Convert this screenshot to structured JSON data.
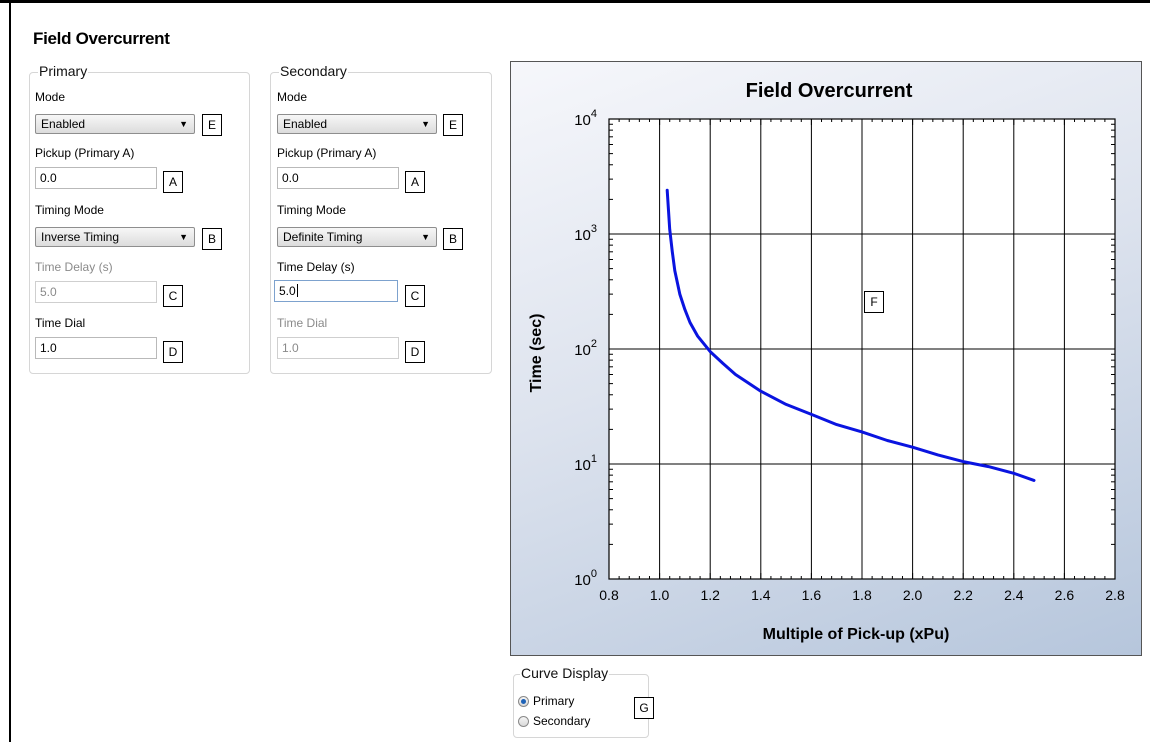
{
  "page": {
    "title": "Field Overcurrent"
  },
  "primary": {
    "legend": "Primary",
    "mode_label": "Mode",
    "mode_value": "Enabled",
    "pickup_label": "Pickup (Primary A)",
    "pickup_value": "0.0",
    "timing_mode_label": "Timing Mode",
    "timing_mode_value": "Inverse Timing",
    "time_delay_label": "Time Delay (s)",
    "time_delay_value": "5.0",
    "time_dial_label": "Time Dial",
    "time_dial_value": "1.0"
  },
  "secondary": {
    "legend": "Secondary",
    "mode_label": "Mode",
    "mode_value": "Enabled",
    "pickup_label": "Pickup (Primary A)",
    "pickup_value": "0.0",
    "timing_mode_label": "Timing Mode",
    "timing_mode_value": "Definite Timing",
    "time_delay_label": "Time Delay (s)",
    "time_delay_value": "5.0",
    "time_dial_label": "Time Dial",
    "time_dial_value": "1.0"
  },
  "tags": {
    "A": "A",
    "B": "B",
    "C": "C",
    "D": "D",
    "E": "E",
    "F": "F",
    "G": "G"
  },
  "curve_display": {
    "legend": "Curve Display",
    "options": [
      "Primary",
      "Secondary"
    ],
    "selected": "Primary"
  },
  "icons": {
    "dropdown": "chevron-down-icon",
    "radio": "radio-icon"
  },
  "colors": {
    "curve": "#0a14e0",
    "panel_gradient": [
      "#f6f7fb",
      "#b6c6dc"
    ]
  },
  "chart_data": {
    "type": "line",
    "title": "Field Overcurrent",
    "xlabel": "Multiple of Pick-up (xPu)",
    "ylabel": "Time (sec)",
    "xlim": [
      0.8,
      2.8
    ],
    "ylim": [
      1,
      10000
    ],
    "yscale": "log",
    "grid": true,
    "x_ticks": [
      "0.8",
      "1.0",
      "1.2",
      "1.4",
      "1.6",
      "1.8",
      "2.0",
      "2.2",
      "2.4",
      "2.6",
      "2.8"
    ],
    "y_ticks": [
      {
        "base": "10",
        "exp": "0",
        "value": 1
      },
      {
        "base": "10",
        "exp": "1",
        "value": 10
      },
      {
        "base": "10",
        "exp": "2",
        "value": 100
      },
      {
        "base": "10",
        "exp": "3",
        "value": 1000
      },
      {
        "base": "10",
        "exp": "4",
        "value": 10000
      }
    ],
    "series": [
      {
        "x": [
          1.03,
          1.035,
          1.04,
          1.05,
          1.06,
          1.08,
          1.1,
          1.12,
          1.15,
          1.2,
          1.25,
          1.3,
          1.4,
          1.5,
          1.6,
          1.7,
          1.8,
          1.9,
          2.0,
          2.1,
          2.2,
          2.3,
          2.4,
          2.48
        ],
        "y": [
          2400,
          1600,
          1100,
          700,
          480,
          300,
          220,
          170,
          130,
          95,
          75,
          60,
          43,
          33,
          27,
          22,
          19,
          16,
          14,
          12,
          10.5,
          9.5,
          8.3,
          7.2
        ]
      }
    ]
  }
}
